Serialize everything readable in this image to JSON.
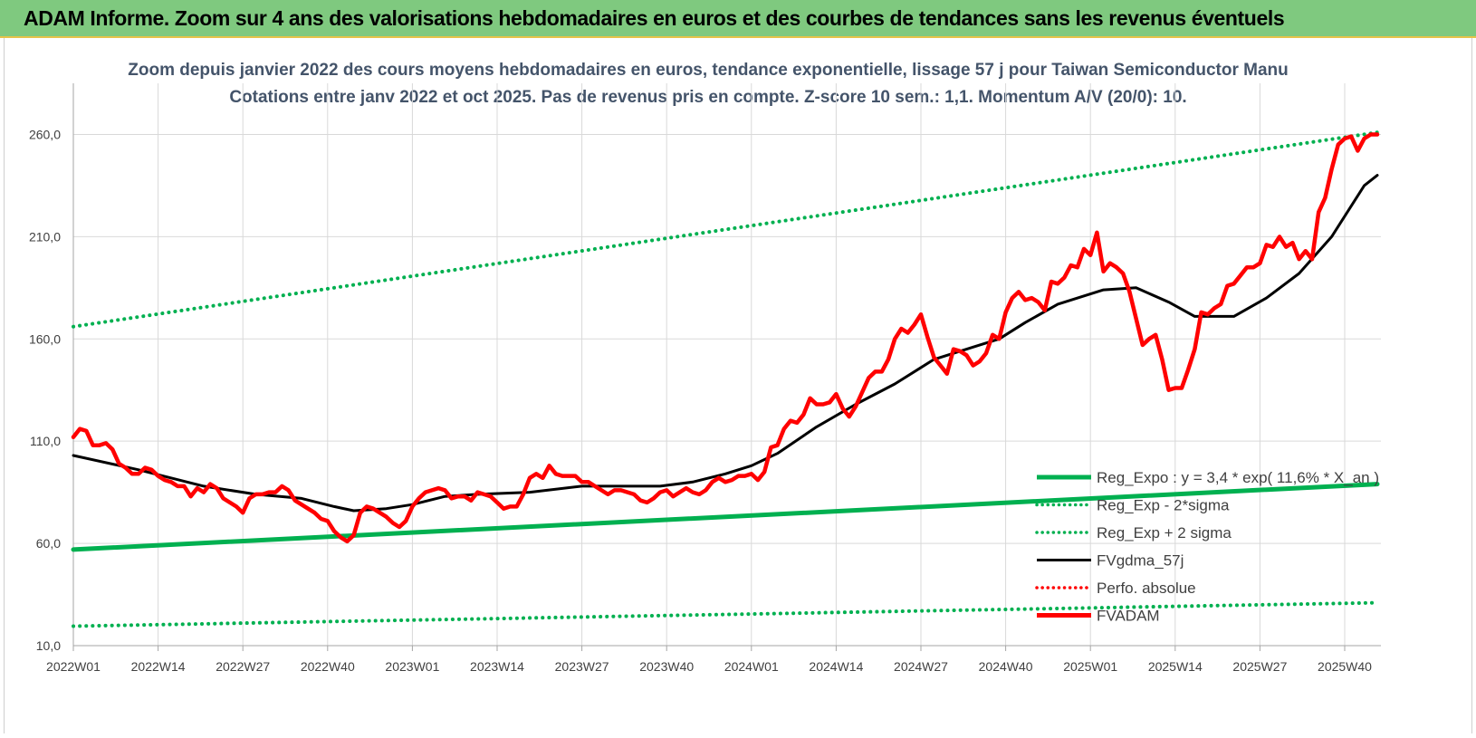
{
  "header": {
    "banner": "ADAM Informe. Zoom sur 4 ans des valorisations hebdomadaires en euros et des courbes de tendances sans les revenus éventuels"
  },
  "chart_data": {
    "type": "line",
    "title": "Zoom depuis janvier 2022 des cours moyens hebdomadaires en euros, tendance exponentielle, lissage 57 j pour Taiwan Semiconductor Manu",
    "subtitle": "Cotations entre janv 2022 et oct 2025. Pas de revenus pris en compte. Z-score 10 sem.: 1,1. Momentum A/V (20/0): 10.",
    "xlabel": "",
    "ylabel": "",
    "ylim": [
      10,
      285
    ],
    "yticks": [
      10,
      60,
      110,
      160,
      210,
      260
    ],
    "ytick_labels": [
      "10,0",
      "60,0",
      "110,0",
      "160,0",
      "210,0",
      "260,0"
    ],
    "x_tick_labels": [
      "2022W01",
      "2022W14",
      "2022W27",
      "2022W40",
      "2023W01",
      "2023W14",
      "2023W27",
      "2023W40",
      "2024W01",
      "2024W14",
      "2024W27",
      "2024W40",
      "2025W01",
      "2025W14",
      "2025W27",
      "2025W40"
    ],
    "x_tick_step_weeks": 13,
    "legend_position": "bottom-right",
    "grid": true,
    "series": [
      {
        "name": "Reg_Expo : y = 3,4 * exp( 11,6% * X_an )",
        "style": "solid",
        "color": "#00b050",
        "x": [
          0,
          200
        ],
        "values": [
          57,
          89
        ]
      },
      {
        "name": "Reg_Exp - 2*sigma",
        "style": "dotted",
        "color": "#00b050",
        "x": [
          0,
          200
        ],
        "values": [
          19.5,
          31
        ]
      },
      {
        "name": "Reg_Exp + 2 sigma",
        "style": "dotted",
        "color": "#00b050",
        "x": [
          0,
          200
        ],
        "values": [
          166,
          261
        ]
      },
      {
        "name": "FVgdma_57j",
        "style": "solid",
        "color": "#000000",
        "x": [
          0,
          10,
          20,
          28,
          35,
          40,
          43,
          48,
          52,
          57,
          62,
          70,
          78,
          85,
          90,
          95,
          100,
          104,
          108,
          114,
          120,
          126,
          132,
          138,
          142,
          146,
          151,
          158,
          163,
          168,
          172,
          178,
          183,
          188,
          193,
          198,
          200
        ],
        "values": [
          103,
          96,
          88,
          84,
          82,
          78,
          76,
          77,
          79,
          83,
          84,
          85,
          88,
          88,
          88,
          90,
          94,
          98,
          104,
          117,
          128,
          138,
          150,
          156,
          160,
          168,
          177,
          184,
          185,
          178,
          171,
          171,
          180,
          192,
          210,
          235,
          240
        ]
      },
      {
        "name": "Perfo. absolue",
        "style": "dotted",
        "color": "#ff0000",
        "x": [],
        "values": []
      },
      {
        "name": "FVADAM",
        "style": "solid",
        "color": "#ff0000",
        "x": [
          0,
          1,
          2,
          3,
          4,
          5,
          6,
          7,
          8,
          9,
          10,
          11,
          12,
          13,
          14,
          15,
          16,
          17,
          18,
          19,
          20,
          21,
          22,
          23,
          24,
          25,
          26,
          27,
          28,
          29,
          30,
          31,
          32,
          33,
          34,
          35,
          36,
          37,
          38,
          39,
          40,
          41,
          42,
          43,
          44,
          45,
          46,
          47,
          48,
          49,
          50,
          51,
          52,
          53,
          54,
          55,
          56,
          57,
          58,
          59,
          60,
          61,
          62,
          63,
          64,
          65,
          66,
          67,
          68,
          69,
          70,
          71,
          72,
          73,
          74,
          75,
          76,
          77,
          78,
          79,
          80,
          81,
          82,
          83,
          84,
          85,
          86,
          87,
          88,
          89,
          90,
          91,
          92,
          93,
          94,
          95,
          96,
          97,
          98,
          99,
          100,
          101,
          102,
          103,
          104,
          105,
          106,
          107,
          108,
          109,
          110,
          111,
          112,
          113,
          114,
          115,
          116,
          117,
          118,
          119,
          120,
          121,
          122,
          123,
          124,
          125,
          126,
          127,
          128,
          129,
          130,
          131,
          132,
          133,
          134,
          135,
          136,
          137,
          138,
          139,
          140,
          141,
          142,
          143,
          144,
          145,
          146,
          147,
          148,
          149,
          150,
          151,
          152,
          153,
          154,
          155,
          156,
          157,
          158,
          159,
          160,
          161,
          162,
          163,
          164,
          165,
          166,
          167,
          168,
          169,
          170,
          171,
          172,
          173,
          174,
          175,
          176,
          177,
          178,
          179,
          180,
          181,
          182,
          183,
          184,
          185,
          186,
          187,
          188,
          189,
          190,
          191,
          192,
          193,
          194,
          195,
          196,
          197,
          198,
          199,
          200
        ],
        "values": [
          112,
          116,
          115,
          108,
          108,
          109,
          106,
          99,
          97,
          94,
          94,
          97,
          96,
          93,
          91,
          90,
          88,
          88,
          83,
          87,
          85,
          89,
          87,
          82,
          80,
          78,
          75,
          82,
          84,
          84,
          85,
          85,
          88,
          86,
          81,
          79,
          77,
          75,
          72,
          71,
          66,
          63,
          61,
          64,
          75,
          78,
          77,
          75,
          73,
          70,
          68,
          71,
          78,
          82,
          85,
          86,
          87,
          86,
          82,
          83,
          83,
          81,
          85,
          84,
          83,
          80,
          77,
          78,
          78,
          84,
          92,
          94,
          92,
          98,
          94,
          93,
          93,
          93,
          90,
          90,
          88,
          86,
          84,
          86,
          86,
          85,
          84,
          81,
          80,
          82,
          85,
          86,
          83,
          85,
          87,
          85,
          84,
          86,
          90,
          92,
          90,
          91,
          93,
          93,
          94,
          91,
          95,
          107,
          108,
          116,
          120,
          119,
          123,
          131,
          128,
          128,
          129,
          133,
          126,
          122,
          127,
          134,
          141,
          144,
          144,
          150,
          160,
          165,
          163,
          167,
          172,
          161,
          151,
          147,
          143,
          155,
          154,
          152,
          147,
          149,
          153,
          162,
          160,
          173,
          180,
          183,
          179,
          180,
          178,
          174,
          188,
          187,
          190,
          196,
          195,
          204,
          201,
          212,
          193,
          197,
          195,
          192,
          183,
          170,
          157,
          160,
          162,
          150,
          135,
          136,
          136,
          145,
          155,
          173,
          172,
          175,
          177,
          186,
          187,
          191,
          195,
          195,
          197,
          206,
          205,
          210,
          205,
          207,
          199,
          203,
          199,
          222,
          229,
          243,
          255,
          258,
          259,
          252,
          258,
          260,
          260
        ]
      }
    ]
  }
}
